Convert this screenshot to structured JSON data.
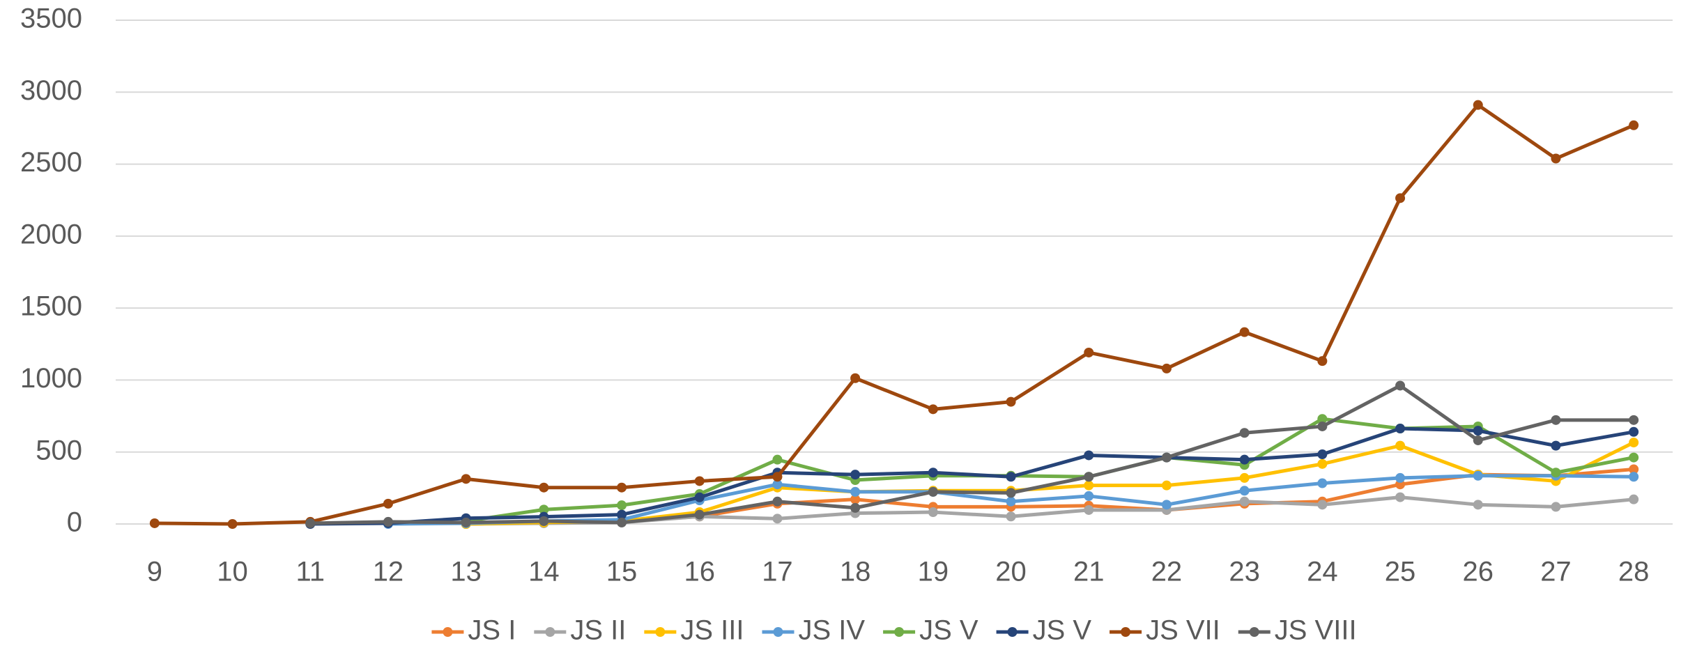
{
  "chart_data": {
    "type": "line",
    "categories": [
      "9",
      "10",
      "11",
      "12",
      "13",
      "14",
      "15",
      "16",
      "17",
      "18",
      "19",
      "20",
      "21",
      "22",
      "23",
      "24",
      "25",
      "26",
      "27",
      "28"
    ],
    "series": [
      {
        "name": "JS I",
        "color": "#ED7D31",
        "values": [
          null,
          null,
          null,
          null,
          0,
          10,
          15,
          52,
          141,
          171,
          119,
          119,
          127,
          97,
          141,
          156,
          275,
          343,
          335,
          380
        ]
      },
      {
        "name": "JS II",
        "color": "#A5A5A5",
        "values": [
          null,
          null,
          null,
          null,
          0,
          5,
          10,
          52,
          37,
          75,
          82,
          52,
          97,
          97,
          156,
          134,
          186,
          134,
          119,
          171
        ]
      },
      {
        "name": "JS III",
        "color": "#FFC000",
        "values": [
          null,
          null,
          null,
          null,
          0,
          10,
          20,
          82,
          253,
          223,
          231,
          231,
          268,
          268,
          320,
          417,
          544,
          343,
          298,
          566
        ]
      },
      {
        "name": "JS IV",
        "color": "#5B9BD5",
        "values": [
          null,
          null,
          null,
          0,
          5,
          20,
          30,
          164,
          275,
          223,
          223,
          156,
          194,
          134,
          231,
          283,
          320,
          335,
          335,
          328
        ]
      },
      {
        "name": "JS V",
        "color": "#70AD47",
        "values": [
          null,
          null,
          null,
          null,
          20,
          100,
          130,
          208,
          447,
          305,
          335,
          335,
          328,
          462,
          410,
          730,
          663,
          678,
          357,
          462
        ]
      },
      {
        "name": "JS V",
        "color": "#264478",
        "values": [
          null,
          null,
          0,
          5,
          40,
          50,
          65,
          185,
          357,
          343,
          357,
          328,
          477,
          462,
          447,
          484,
          663,
          648,
          544,
          640
        ]
      },
      {
        "name": "JS VII",
        "color": "#9E480E",
        "values": [
          5,
          0,
          15,
          141,
          313,
          253,
          253,
          298,
          328,
          1013,
          797,
          849,
          1191,
          1080,
          1333,
          1132,
          2264,
          2911,
          2539,
          2770
        ]
      },
      {
        "name": "JS VIII",
        "color": "#636363",
        "values": [
          null,
          null,
          5,
          15,
          10,
          20,
          10,
          65,
          156,
          112,
          223,
          216,
          328,
          462,
          633,
          678,
          961,
          581,
          722,
          722
        ]
      }
    ],
    "ylim": [
      0,
      3500
    ],
    "yticks": [
      0,
      500,
      1000,
      1500,
      2000,
      2500,
      3000,
      3500
    ],
    "grid": true,
    "legend": "bottom"
  }
}
